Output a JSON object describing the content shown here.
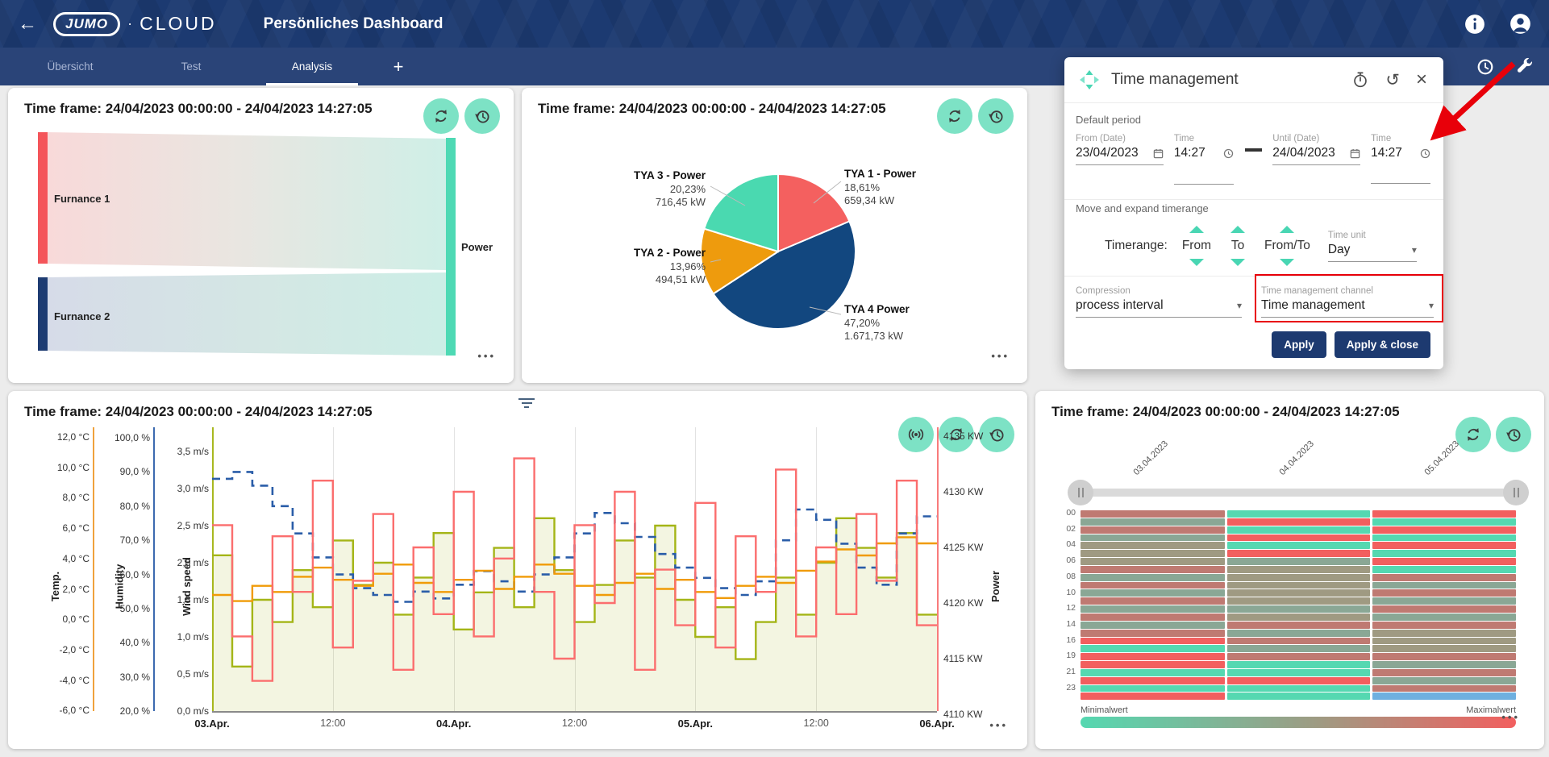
{
  "header": {
    "logo_primary": "JUMO",
    "logo_separator": "·",
    "logo_secondary": "CLOUD",
    "title": "Persönliches Dashboard"
  },
  "tabbar": {
    "tabs": [
      "Übersicht",
      "Test",
      "Analysis"
    ],
    "active_tab": "Analysis",
    "add_tab": "+"
  },
  "time_frame_title": "Time frame: 24/04/2023 00:00:00 - 24/04/2023 14:27:05",
  "ui": {
    "more": "•••"
  },
  "colors": {
    "header_navy": "#1c3a71",
    "tabbar_navy": "#2a4478",
    "accent_teal": "#7de2c5",
    "button_navy": "#1d3a70",
    "annotation_red": "#e8000a"
  },
  "dialog": {
    "title": "Time management",
    "default_period": {
      "heading": "Default period",
      "from_date": {
        "label": "From (Date)",
        "value": "23/04/2023"
      },
      "from_time": {
        "label": "Time",
        "value": "14:27"
      },
      "until_date": {
        "label": "Until (Date)",
        "value": "24/04/2023"
      },
      "until_time": {
        "label": "Time",
        "value": "14:27"
      }
    },
    "move_expand": {
      "heading": "Move and expand timerange",
      "timerange_label": "Timerange:",
      "steppers": [
        "From",
        "To",
        "From/To"
      ],
      "time_unit": {
        "label": "Time unit",
        "value": "Day"
      }
    },
    "compression": {
      "label": "Compression",
      "value": "process interval"
    },
    "channel": {
      "label": "Time management channel",
      "value": "Time management"
    },
    "apply": "Apply",
    "apply_close": "Apply & close"
  },
  "chart_data": [
    {
      "type": "sankey",
      "nodes": [
        {
          "label": "Furnance 1",
          "color": "#f4555a"
        },
        {
          "label": "Furnance 2",
          "color": "#1e3c72"
        },
        {
          "label": "Power",
          "color": "#4ed9b4"
        }
      ],
      "links": [
        {
          "source": "Furnance 1",
          "target": "Power",
          "share": 0.61
        },
        {
          "source": "Furnance 2",
          "target": "Power",
          "share": 0.39
        }
      ]
    },
    {
      "type": "pie",
      "title": "Time frame: 24/04/2023 00:00:00 - 24/04/2023 14:27:05",
      "slices": [
        {
          "name": "TYA 1 - Power",
          "percent": 18.61,
          "percent_label": "18,61%",
          "value_label": "659,34 kW",
          "color": "#f4605f"
        },
        {
          "name": "TYA 4 Power",
          "percent": 47.2,
          "percent_label": "47,20%",
          "value_label": "1.671,73 kW",
          "color": "#12477f"
        },
        {
          "name": "TYA 2 - Power",
          "percent": 13.96,
          "percent_label": "13,96%",
          "value_label": "494,51 kW",
          "color": "#ee9b0d"
        },
        {
          "name": "TYA 3 - Power",
          "percent": 20.23,
          "percent_label": "20,23%",
          "value_label": "716,45 kW",
          "color": "#4ad9b0"
        }
      ]
    },
    {
      "type": "line",
      "title": "Time frame: 24/04/2023 00:00:00 - 24/04/2023 14:27:05",
      "axes": [
        {
          "id": "temp",
          "label": "Temp.",
          "color": "#f0a23c",
          "min": -6,
          "max": 12,
          "ticks": [
            "12,0 °C",
            "10,0 °C",
            "8,0 °C",
            "6,0 °C",
            "4,0 °C",
            "2,0 °C",
            "0,0 °C",
            "-2,0 °C",
            "-4,0 °C",
            "-6,0 °C"
          ]
        },
        {
          "id": "humidity",
          "label": "Humidity",
          "color": "#3c6ab0",
          "min": 20,
          "max": 100,
          "ticks": [
            "100,0 %",
            "90,0 %",
            "80,0 %",
            "70,0 %",
            "60,0 %",
            "50,0 %",
            "40,0 %",
            "30,0 %",
            "20,0 %"
          ]
        },
        {
          "id": "wind",
          "label": "Wind speed",
          "color": "#a8b820",
          "min": 0,
          "max": 3.5,
          "ticks": [
            "3,5 m/s",
            "3,0 m/s",
            "2,5 m/s",
            "2,0 m/s",
            "1,5 m/s",
            "1,0 m/s",
            "0,5 m/s",
            "0,0 m/s"
          ]
        },
        {
          "id": "power",
          "label": "Power",
          "color": "#f87b7b",
          "min": 4110,
          "max": 4135,
          "ticks": [
            "4135 KW",
            "4130 KW",
            "4125 KW",
            "4120 KW",
            "4115 KW",
            "4110 KW"
          ]
        }
      ],
      "x_labels": [
        "03.Apr.",
        "12:00",
        "04.Apr.",
        "12:00",
        "05.Apr.",
        "12:00",
        "06.Apr."
      ],
      "series": [
        {
          "name": "Wind speed",
          "axis": "wind",
          "color": "#a4b517",
          "style": "step-filled",
          "fill": "rgba(164,181,23,0.13)",
          "values": [
            2.1,
            0.6,
            1.5,
            1.2,
            1.9,
            1.4,
            2.3,
            1.7,
            2.0,
            1.3,
            1.8,
            2.4,
            1.1,
            1.6,
            2.2,
            1.4,
            2.6,
            1.9,
            1.2,
            1.7,
            2.3,
            1.8,
            2.5,
            1.5,
            1.0,
            1.4,
            0.7,
            1.2,
            1.8,
            1.3,
            2.0,
            2.6,
            2.2,
            1.8,
            2.4,
            1.3
          ]
        },
        {
          "name": "Humidity",
          "axis": "humidity",
          "color": "#2a5da8",
          "style": "step-dashed",
          "values": [
            88,
            90,
            86,
            80,
            72,
            65,
            60,
            56,
            54,
            52,
            55,
            53,
            57,
            61,
            58,
            55,
            60,
            65,
            72,
            78,
            75,
            71,
            66,
            62,
            59,
            56,
            54,
            58,
            70,
            79,
            76,
            69,
            62,
            57,
            72,
            77
          ]
        },
        {
          "name": "Temp",
          "axis": "temp",
          "color": "#f09b07",
          "style": "step",
          "values": [
            1.6,
            1.2,
            2.2,
            1.8,
            2.8,
            3.4,
            2.6,
            2.2,
            3.0,
            3.6,
            2.4,
            1.8,
            2.6,
            3.2,
            2.0,
            2.8,
            3.6,
            3.0,
            2.2,
            1.6,
            2.4,
            3.0,
            2.0,
            2.6,
            1.8,
            1.4,
            2.2,
            2.8,
            2.4,
            3.2,
            3.8,
            4.6,
            4.2,
            5.0,
            5.4,
            5.0
          ]
        },
        {
          "name": "Power",
          "axis": "power",
          "color": "#fb6e6e",
          "style": "step",
          "values": [
            4127,
            4117,
            4113,
            4126,
            4121,
            4131,
            4116,
            4122,
            4128,
            4114,
            4125,
            4119,
            4130,
            4117,
            4124,
            4133,
            4121,
            4115,
            4127,
            4120,
            4130,
            4114,
            4123,
            4118,
            4129,
            4116,
            4126,
            4121,
            4132,
            4117,
            4125,
            4119,
            4128,
            4122,
            4131,
            4118
          ]
        }
      ]
    },
    {
      "type": "heatmap",
      "title": "Time frame: 24/04/2023 00:00:00 - 24/04/2023 14:27:05",
      "col_labels": [
        "03.04.2023",
        "04.04.2023",
        "05.04.2023"
      ],
      "row_labels": [
        "00",
        "02",
        "04",
        "06",
        "08",
        "10",
        "12",
        "14",
        "16",
        "19",
        "21",
        "23"
      ],
      "legend_min": "Minimalwert",
      "legend_max": "Maximalwert",
      "palette": {
        "mr": "#bf7a72",
        "mg": "#8aa795",
        "mo": "#9f9a82",
        "br": "#f25f5f",
        "bt": "#55d8b1",
        "bb": "#6fb0e0"
      },
      "grid": [
        [
          "mr",
          "bt",
          "br"
        ],
        [
          "mg",
          "br",
          "bt"
        ],
        [
          "mr",
          "bt",
          "br"
        ],
        [
          "mg",
          "br",
          "bt"
        ],
        [
          "mo",
          "bt",
          "br"
        ],
        [
          "mo",
          "br",
          "bt"
        ],
        [
          "mo",
          "mg",
          "br"
        ],
        [
          "mr",
          "mo",
          "bt"
        ],
        [
          "mg",
          "mo",
          "mr"
        ],
        [
          "mr",
          "mo",
          "mg"
        ],
        [
          "mg",
          "mo",
          "mr"
        ],
        [
          "mr",
          "mo",
          "mg"
        ],
        [
          "mg",
          "mg",
          "mr"
        ],
        [
          "mr",
          "mo",
          "mg"
        ],
        [
          "mg",
          "mr",
          "mr"
        ],
        [
          "mr",
          "mg",
          "mo"
        ],
        [
          "br",
          "mr",
          "mo"
        ],
        [
          "bt",
          "mg",
          "mo"
        ],
        [
          "br",
          "mr",
          "mr"
        ],
        [
          "br",
          "bt",
          "mg"
        ],
        [
          "bt",
          "bt",
          "mr"
        ],
        [
          "br",
          "br",
          "mg"
        ],
        [
          "bt",
          "bt",
          "mr"
        ],
        [
          "br",
          "bt",
          "bb"
        ]
      ]
    }
  ]
}
